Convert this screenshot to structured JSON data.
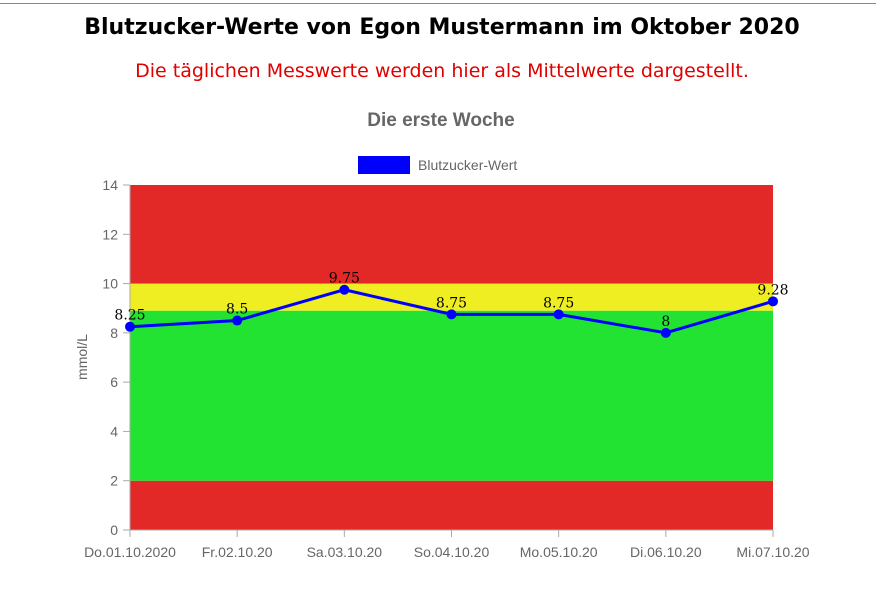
{
  "page": {
    "title": "Blutzucker-Werte von Egon Mustermann im Oktober 2020",
    "subtitle": "Die täglichen Messwerte werden hier als Mittelwerte dargestellt.",
    "subtitle_color": "#e00000"
  },
  "chart_data": {
    "type": "line",
    "title": "Die erste Woche",
    "xlabel": "",
    "ylabel": "mmol/L",
    "ylim": [
      0,
      14
    ],
    "yticks": [
      0,
      2,
      4,
      6,
      8,
      10,
      12,
      14
    ],
    "categories": [
      "Do.01.10.2020",
      "Fr.02.10.20",
      "Sa.03.10.20",
      "So.04.10.20",
      "Mo.05.10.20",
      "Di.06.10.20",
      "Mi.07.10.20"
    ],
    "series": [
      {
        "name": "Blutzucker-Wert",
        "color": "#0000ff",
        "values": [
          8.25,
          8.5,
          9.75,
          8.75,
          8.75,
          8,
          9.28
        ]
      }
    ],
    "data_labels": [
      "8.25",
      "8.5",
      "9.75",
      "8.75",
      "8.75",
      "8",
      "9.28"
    ],
    "bands": [
      {
        "from": 0,
        "to": 2,
        "color": "#e32828"
      },
      {
        "from": 2,
        "to": 8.9,
        "color": "#23e332"
      },
      {
        "from": 8.9,
        "to": 10,
        "color": "#eeee22"
      },
      {
        "from": 10,
        "to": 14,
        "color": "#e32828"
      }
    ],
    "legend_position": "top",
    "grid": false
  }
}
